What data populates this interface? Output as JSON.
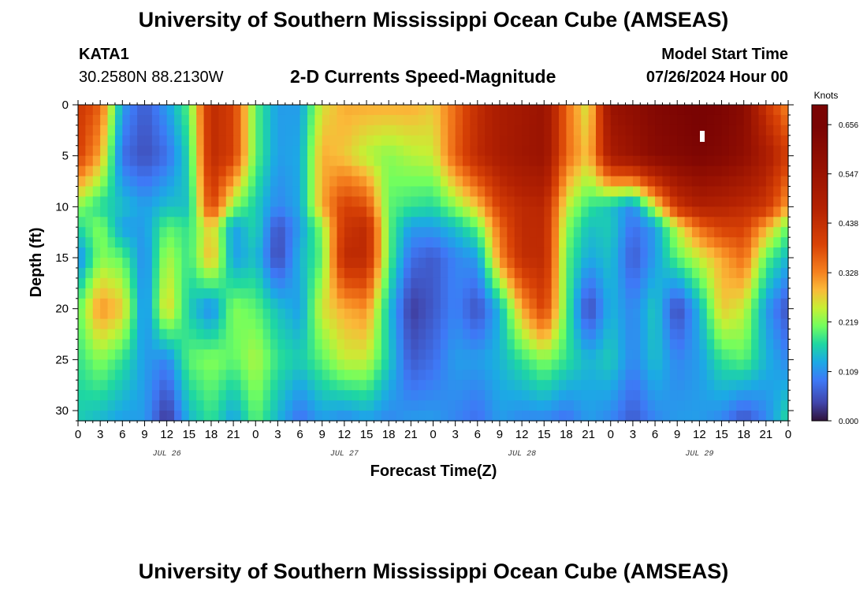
{
  "header": {
    "title": "University of Southern Mississippi Ocean Cube (AMSEAS)",
    "station_id": "KATA1",
    "station_coords": "30.2580N  88.2130W",
    "chart_title": "2-D Currents Speed-Magnitude",
    "model_start_label": "Model Start Time",
    "model_start_value": "07/26/2024 Hour 00"
  },
  "footer": {
    "title": "University of Southern Mississippi Ocean Cube (AMSEAS)"
  },
  "chart_data": {
    "type": "heatmap",
    "title": "2-D Currents Speed-Magnitude",
    "xlabel": "Forecast Time(Z)",
    "ylabel": "Depth (ft)",
    "x_ticks": [
      "0",
      "3",
      "6",
      "9",
      "12",
      "15",
      "18",
      "21",
      "0",
      "3",
      "6",
      "9",
      "12",
      "15",
      "18",
      "21",
      "0",
      "3",
      "6",
      "9",
      "12",
      "15",
      "18",
      "21",
      "0",
      "3",
      "6",
      "9",
      "12",
      "15",
      "18",
      "21",
      "0"
    ],
    "x_hours_range": [
      0,
      96
    ],
    "date_labels": [
      {
        "label": "JUL 26",
        "hour": 12
      },
      {
        "label": "JUL 27",
        "hour": 36
      },
      {
        "label": "JUL 28",
        "hour": 60
      },
      {
        "label": "JUL 29",
        "hour": 84
      }
    ],
    "y_ticks": [
      0,
      5,
      10,
      15,
      20,
      25,
      30
    ],
    "ylim": [
      0,
      31
    ],
    "y_inverted": true,
    "colorbar": {
      "label": "Knots",
      "ticks": [
        "0.000",
        "0.109",
        "0.219",
        "0.328",
        "0.438",
        "0.547",
        "0.656"
      ],
      "range": [
        0,
        0.7
      ]
    },
    "colormap": [
      {
        "v": 0.0,
        "c": "#30123b"
      },
      {
        "v": 0.04,
        "c": "#4145ab"
      },
      {
        "v": 0.09,
        "c": "#3e79f6"
      },
      {
        "v": 0.13,
        "c": "#1ca9e5"
      },
      {
        "v": 0.17,
        "c": "#1ed7a2"
      },
      {
        "v": 0.21,
        "c": "#72fe5e"
      },
      {
        "v": 0.25,
        "c": "#c7ef34"
      },
      {
        "v": 0.29,
        "c": "#faba39"
      },
      {
        "v": 0.33,
        "c": "#f5801e"
      },
      {
        "v": 0.39,
        "c": "#d94306"
      },
      {
        "v": 0.47,
        "c": "#b42202"
      },
      {
        "v": 0.56,
        "c": "#961102"
      },
      {
        "v": 0.65,
        "c": "#7a0403"
      }
    ],
    "rows_depth_ft": [
      0,
      5,
      10,
      12,
      15,
      20,
      25,
      31
    ],
    "cols_hour": [
      0,
      3,
      6,
      9,
      12,
      15,
      18,
      21,
      24,
      27,
      30,
      33,
      36,
      39,
      42,
      45,
      48,
      51,
      54,
      57,
      60,
      63,
      66,
      69,
      72,
      75,
      78,
      81,
      84,
      87,
      90,
      93,
      96
    ],
    "values_knots": [
      [
        0.42,
        0.36,
        0.12,
        0.06,
        0.12,
        0.2,
        0.45,
        0.4,
        0.2,
        0.12,
        0.12,
        0.26,
        0.3,
        0.3,
        0.3,
        0.3,
        0.28,
        0.35,
        0.44,
        0.5,
        0.52,
        0.55,
        0.35,
        0.25,
        0.55,
        0.58,
        0.62,
        0.64,
        0.66,
        0.64,
        0.6,
        0.42,
        0.32
      ],
      [
        0.4,
        0.3,
        0.08,
        0.05,
        0.08,
        0.17,
        0.45,
        0.4,
        0.2,
        0.12,
        0.13,
        0.3,
        0.28,
        0.24,
        0.22,
        0.24,
        0.25,
        0.36,
        0.45,
        0.5,
        0.53,
        0.55,
        0.35,
        0.28,
        0.5,
        0.55,
        0.6,
        0.62,
        0.64,
        0.62,
        0.58,
        0.5,
        0.4
      ],
      [
        0.22,
        0.17,
        0.15,
        0.12,
        0.15,
        0.15,
        0.4,
        0.22,
        0.16,
        0.1,
        0.13,
        0.3,
        0.4,
        0.38,
        0.2,
        0.18,
        0.17,
        0.22,
        0.28,
        0.4,
        0.45,
        0.46,
        0.25,
        0.18,
        0.15,
        0.1,
        0.25,
        0.42,
        0.48,
        0.47,
        0.45,
        0.42,
        0.3
      ],
      [
        0.17,
        0.22,
        0.12,
        0.12,
        0.2,
        0.18,
        0.28,
        0.12,
        0.17,
        0.05,
        0.12,
        0.22,
        0.42,
        0.45,
        0.2,
        0.12,
        0.12,
        0.15,
        0.2,
        0.35,
        0.45,
        0.45,
        0.22,
        0.15,
        0.16,
        0.08,
        0.12,
        0.25,
        0.35,
        0.4,
        0.4,
        0.3,
        0.2
      ],
      [
        0.1,
        0.22,
        0.2,
        0.1,
        0.24,
        0.18,
        0.3,
        0.12,
        0.15,
        0.04,
        0.14,
        0.2,
        0.45,
        0.45,
        0.2,
        0.08,
        0.06,
        0.1,
        0.12,
        0.32,
        0.44,
        0.45,
        0.2,
        0.13,
        0.15,
        0.06,
        0.12,
        0.2,
        0.25,
        0.3,
        0.35,
        0.2,
        0.14
      ],
      [
        0.2,
        0.32,
        0.28,
        0.1,
        0.28,
        0.16,
        0.1,
        0.22,
        0.2,
        0.15,
        0.12,
        0.26,
        0.3,
        0.32,
        0.15,
        0.03,
        0.06,
        0.1,
        0.05,
        0.14,
        0.3,
        0.4,
        0.2,
        0.04,
        0.14,
        0.1,
        0.16,
        0.04,
        0.14,
        0.28,
        0.25,
        0.12,
        0.05
      ],
      [
        0.18,
        0.22,
        0.18,
        0.12,
        0.1,
        0.2,
        0.22,
        0.2,
        0.24,
        0.18,
        0.16,
        0.2,
        0.25,
        0.25,
        0.16,
        0.06,
        0.08,
        0.12,
        0.12,
        0.14,
        0.18,
        0.22,
        0.18,
        0.14,
        0.16,
        0.1,
        0.15,
        0.1,
        0.12,
        0.18,
        0.2,
        0.14,
        0.1
      ],
      [
        0.16,
        0.14,
        0.12,
        0.12,
        0.02,
        0.14,
        0.18,
        0.12,
        0.2,
        0.14,
        0.08,
        0.12,
        0.1,
        0.12,
        0.1,
        0.12,
        0.12,
        0.1,
        0.08,
        0.12,
        0.1,
        0.1,
        0.08,
        0.12,
        0.1,
        0.06,
        0.1,
        0.12,
        0.12,
        0.1,
        0.05,
        0.1,
        0.18
      ]
    ]
  }
}
